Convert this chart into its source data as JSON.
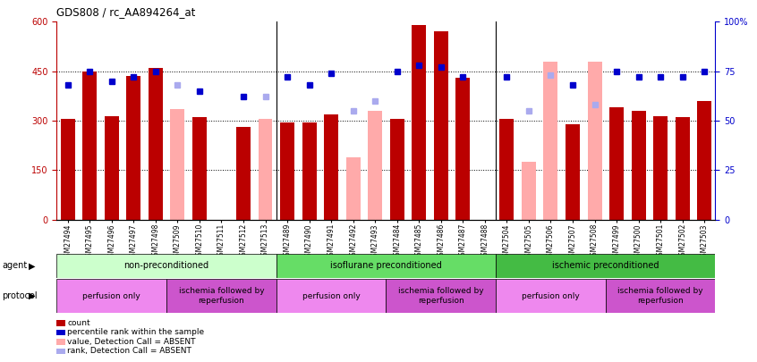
{
  "title": "GDS808 / rc_AA894264_at",
  "samples": [
    "GSM27494",
    "GSM27495",
    "GSM27496",
    "GSM27497",
    "GSM27498",
    "GSM27509",
    "GSM27510",
    "GSM27511",
    "GSM27512",
    "GSM27513",
    "GSM27489",
    "GSM27490",
    "GSM27491",
    "GSM27492",
    "GSM27493",
    "GSM27484",
    "GSM27485",
    "GSM27486",
    "GSM27487",
    "GSM27488",
    "GSM27504",
    "GSM27505",
    "GSM27506",
    "GSM27507",
    "GSM27508",
    "GSM27499",
    "GSM27500",
    "GSM27501",
    "GSM27502",
    "GSM27503"
  ],
  "count_values": [
    305,
    450,
    315,
    435,
    460,
    null,
    310,
    null,
    280,
    null,
    295,
    295,
    320,
    null,
    null,
    305,
    590,
    570,
    430,
    null,
    305,
    null,
    null,
    290,
    null,
    340,
    330,
    315,
    310,
    360
  ],
  "count_absent": [
    null,
    null,
    null,
    null,
    null,
    335,
    null,
    null,
    null,
    305,
    null,
    null,
    null,
    190,
    330,
    null,
    null,
    null,
    null,
    null,
    null,
    175,
    480,
    null,
    480,
    null,
    null,
    null,
    null,
    null
  ],
  "rank_values": [
    68,
    75,
    70,
    72,
    75,
    null,
    65,
    null,
    62,
    null,
    72,
    68,
    74,
    null,
    null,
    75,
    78,
    77,
    72,
    null,
    72,
    null,
    null,
    68,
    null,
    75,
    72,
    72,
    72,
    75
  ],
  "rank_absent": [
    null,
    null,
    null,
    null,
    null,
    68,
    null,
    null,
    null,
    62,
    null,
    null,
    null,
    55,
    60,
    null,
    null,
    null,
    null,
    null,
    null,
    55,
    73,
    null,
    58,
    null,
    null,
    null,
    null,
    null
  ],
  "ylim_left": [
    0,
    600
  ],
  "ylim_right": [
    0,
    100
  ],
  "yticks_left": [
    0,
    150,
    300,
    450,
    600
  ],
  "yticks_right": [
    0,
    25,
    50,
    75,
    100
  ],
  "bar_color_present": "#bb0000",
  "bar_color_absent": "#ffaaaa",
  "dot_color_present": "#0000cc",
  "dot_color_absent": "#aaaaee",
  "grid_lines": [
    150,
    300,
    450
  ],
  "agent_groups": [
    {
      "label": "non-preconditioned",
      "start": 0,
      "end": 10,
      "color": "#ccffcc"
    },
    {
      "label": "isoflurane preconditioned",
      "start": 10,
      "end": 20,
      "color": "#66dd66"
    },
    {
      "label": "ischemic preconditioned",
      "start": 20,
      "end": 30,
      "color": "#44bb44"
    }
  ],
  "protocol_groups": [
    {
      "label": "perfusion only",
      "start": 0,
      "end": 5,
      "color": "#ee88ee"
    },
    {
      "label": "ischemia followed by\nreperfusion",
      "start": 5,
      "end": 10,
      "color": "#cc55cc"
    },
    {
      "label": "perfusion only",
      "start": 10,
      "end": 15,
      "color": "#ee88ee"
    },
    {
      "label": "ischemia followed by\nreperfusion",
      "start": 15,
      "end": 20,
      "color": "#cc55cc"
    },
    {
      "label": "perfusion only",
      "start": 20,
      "end": 25,
      "color": "#ee88ee"
    },
    {
      "label": "ischemia followed by\nreperfusion",
      "start": 25,
      "end": 30,
      "color": "#cc55cc"
    }
  ],
  "legend_items": [
    {
      "label": "count",
      "color": "#bb0000"
    },
    {
      "label": "percentile rank within the sample",
      "color": "#0000cc"
    },
    {
      "label": "value, Detection Call = ABSENT",
      "color": "#ffaaaa"
    },
    {
      "label": "rank, Detection Call = ABSENT",
      "color": "#aaaaee"
    }
  ],
  "group_boundaries": [
    10,
    20
  ]
}
